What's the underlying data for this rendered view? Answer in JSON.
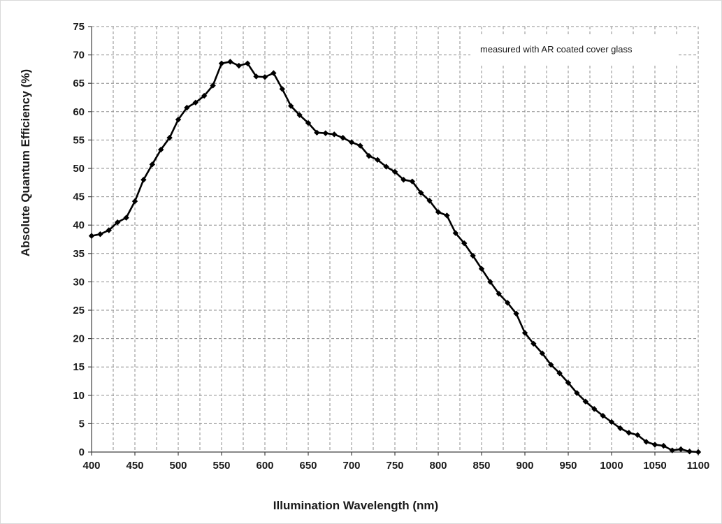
{
  "chart_data": {
    "type": "line",
    "title": "",
    "xlabel": "Illumination Wavelength (nm)",
    "ylabel": "Absolute Quantum Efficiency (%)",
    "xlim": [
      400,
      1100
    ],
    "ylim": [
      0,
      75
    ],
    "xticks": [
      400,
      450,
      500,
      550,
      600,
      650,
      700,
      750,
      800,
      850,
      900,
      950,
      1000,
      1050,
      1100
    ],
    "yticks": [
      0,
      5,
      10,
      15,
      20,
      25,
      30,
      35,
      40,
      45,
      50,
      55,
      60,
      65,
      70,
      75
    ],
    "xgrid_step": 25,
    "grid": true,
    "marker": "diamond",
    "line_color": "#000000",
    "annotation": "measured with AR coated cover glass",
    "series": [
      {
        "x": [
          400,
          410,
          420,
          430,
          440,
          450,
          460,
          470,
          480,
          490,
          500,
          510,
          520,
          530,
          540,
          550,
          560,
          570,
          580,
          590,
          600,
          610,
          620,
          630,
          640,
          650,
          660,
          670,
          680,
          690,
          700,
          710,
          720,
          730,
          740,
          750,
          760,
          770,
          780,
          790,
          800,
          810,
          820,
          830,
          840,
          850,
          860,
          870,
          880,
          890,
          900,
          910,
          920,
          930,
          940,
          950,
          960,
          970,
          980,
          990,
          1000,
          1010,
          1020,
          1030,
          1040,
          1050,
          1060,
          1070,
          1080,
          1090,
          1100
        ],
        "y": [
          38.1,
          38.4,
          39.1,
          40.5,
          41.3,
          44.2,
          48.0,
          50.7,
          53.3,
          55.4,
          58.6,
          60.7,
          61.6,
          62.8,
          64.6,
          68.5,
          68.8,
          68.1,
          68.5,
          66.2,
          66.1,
          66.8,
          64.0,
          61.0,
          59.4,
          58.0,
          56.3,
          56.2,
          56.0,
          55.4,
          54.6,
          54.0,
          52.2,
          51.5,
          50.3,
          49.4,
          48.0,
          47.7,
          45.7,
          44.3,
          42.3,
          41.7,
          38.6,
          36.8,
          34.6,
          32.3,
          30.0,
          27.9,
          26.3,
          24.4,
          21.0,
          19.1,
          17.4,
          15.4,
          13.9,
          12.2,
          10.4,
          8.9,
          7.6,
          6.4,
          5.3,
          4.2,
          3.4,
          3.0,
          1.8,
          1.3,
          1.1,
          0.3,
          0.5,
          0.1,
          0.0
        ]
      }
    ]
  }
}
